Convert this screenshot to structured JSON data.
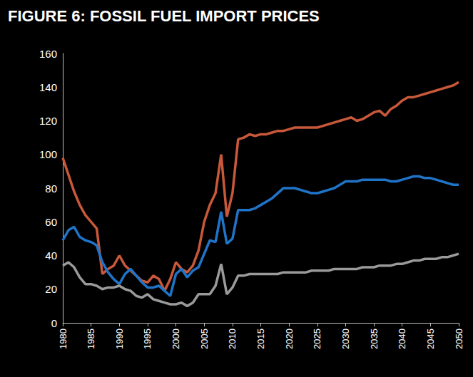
{
  "chart_data": {
    "type": "line",
    "title": "FIGURE 6: FOSSIL FUEL IMPORT PRICES",
    "x": [
      1980,
      1981,
      1982,
      1983,
      1984,
      1985,
      1986,
      1987,
      1988,
      1989,
      1990,
      1991,
      1992,
      1993,
      1994,
      1995,
      1996,
      1997,
      1998,
      1999,
      2000,
      2001,
      2002,
      2003,
      2004,
      2005,
      2006,
      2007,
      2008,
      2009,
      2010,
      2011,
      2012,
      2013,
      2014,
      2015,
      2016,
      2017,
      2018,
      2019,
      2020,
      2021,
      2022,
      2023,
      2024,
      2025,
      2026,
      2027,
      2028,
      2029,
      2030,
      2031,
      2032,
      2033,
      2034,
      2035,
      2036,
      2037,
      2038,
      2039,
      2040,
      2041,
      2042,
      2043,
      2044,
      2045,
      2046,
      2047,
      2048,
      2049,
      2050
    ],
    "series": [
      {
        "color": "#c8583a",
        "values": [
          98,
          88,
          78,
          70,
          64,
          60,
          56,
          29,
          32,
          34,
          40,
          34,
          31,
          28,
          25,
          24,
          28,
          26,
          19,
          26,
          36,
          32,
          30,
          34,
          43,
          60,
          70,
          77,
          100,
          63,
          77,
          109,
          110,
          112,
          111,
          112,
          112,
          113,
          114,
          114,
          115,
          116,
          116,
          116,
          116,
          116,
          117,
          118,
          119,
          120,
          121,
          122,
          120,
          121,
          123,
          125,
          126,
          123,
          127,
          129,
          132,
          134,
          134,
          135,
          136,
          137,
          138,
          139,
          140,
          141,
          143
        ]
      },
      {
        "color": "#1f74c8",
        "values": [
          49,
          55,
          57,
          51,
          49,
          48,
          46,
          36,
          30,
          26,
          23,
          29,
          32,
          28,
          24,
          21,
          21,
          22,
          19,
          16,
          29,
          32,
          27,
          31,
          33,
          41,
          49,
          48,
          66,
          47,
          50,
          67,
          67,
          67,
          68,
          70,
          72,
          74,
          77,
          80,
          80,
          80,
          79,
          78,
          77,
          77,
          78,
          79,
          80,
          82,
          84,
          84,
          84,
          85,
          85,
          85,
          85,
          85,
          84,
          84,
          85,
          86,
          87,
          87,
          86,
          86,
          85,
          84,
          83,
          82,
          82
        ]
      },
      {
        "color": "#9a9a9a",
        "values": [
          34,
          36,
          33,
          27,
          23,
          23,
          22,
          20,
          21,
          21,
          22,
          20,
          19,
          16,
          15,
          17,
          14,
          13,
          12,
          11,
          11,
          12,
          10,
          12,
          17,
          17,
          17,
          22,
          35,
          17,
          21,
          28,
          28,
          29,
          29,
          29,
          29,
          29,
          29,
          30,
          30,
          30,
          30,
          30,
          31,
          31,
          31,
          31,
          32,
          32,
          32,
          32,
          32,
          33,
          33,
          33,
          34,
          34,
          34,
          35,
          35,
          36,
          37,
          37,
          38,
          38,
          38,
          39,
          39,
          40,
          41
        ]
      }
    ],
    "xlim": [
      1980,
      2050
    ],
    "xticks": [
      1980,
      1985,
      1990,
      1995,
      2000,
      2005,
      2010,
      2015,
      2020,
      2025,
      2030,
      2035,
      2040,
      2045,
      2050
    ],
    "ylim": [
      0,
      160
    ],
    "yticks": [
      0,
      20,
      40,
      60,
      80,
      100,
      120,
      140,
      160
    ],
    "grid": false
  }
}
